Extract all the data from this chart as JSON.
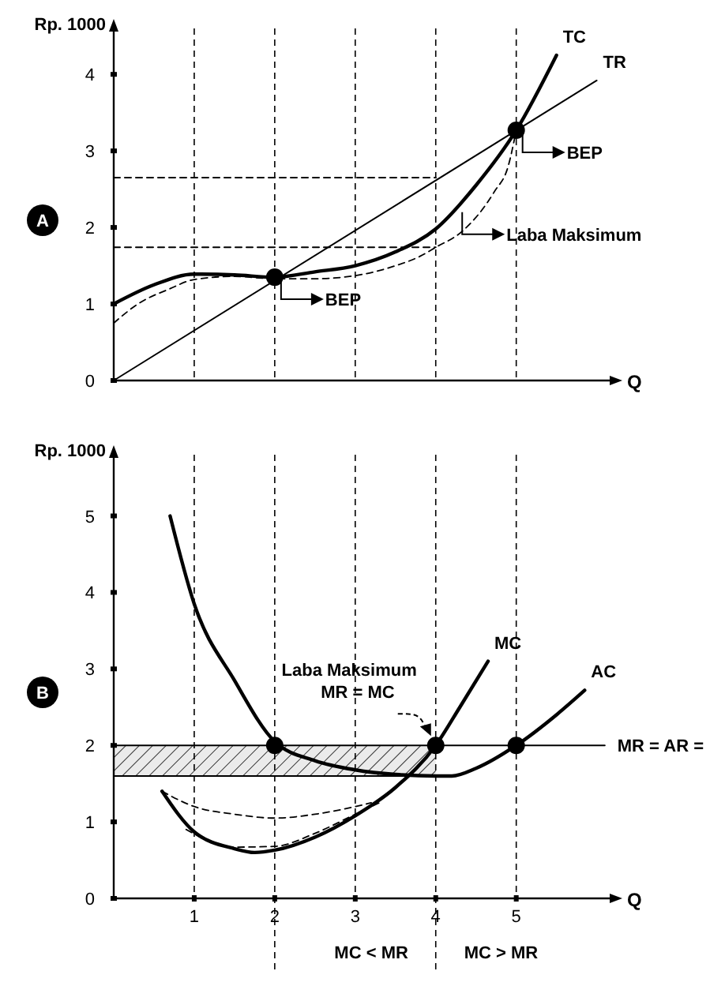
{
  "chart_data": [
    {
      "type": "line",
      "title": "A",
      "ylabel": "Rp. 1000",
      "xlabel": "Q",
      "xlim": [
        0,
        6.2
      ],
      "ylim": [
        0,
        4.6
      ],
      "yticks": [
        0,
        1,
        2,
        3,
        4
      ],
      "tick_labels": "y",
      "series": [
        {
          "name": "TC",
          "color": "#000000",
          "x": [
            0,
            0.5,
            1,
            1.5,
            2,
            2.5,
            3,
            3.5,
            4,
            4.5,
            5,
            5.5
          ],
          "values": [
            1.0,
            1.25,
            1.39,
            1.38,
            1.35,
            1.42,
            1.5,
            1.68,
            1.98,
            2.55,
            3.27,
            4.25
          ]
        },
        {
          "name": "TR",
          "color": "#000000",
          "x": [
            0,
            6
          ],
          "values": [
            0,
            3.92
          ]
        },
        {
          "color": "#000000",
          "line_style": "dashed",
          "x": [
            0,
            0.3,
            0.7,
            1,
            1.5,
            2,
            2.5,
            3,
            3.5,
            3.8,
            4,
            4.33,
            4.73,
            4.9,
            5
          ],
          "values": [
            0.75,
            1.0,
            1.2,
            1.32,
            1.36,
            1.33,
            1.33,
            1.37,
            1.5,
            1.62,
            1.74,
            1.95,
            2.47,
            2.8,
            3.27
          ]
        },
        {
          "color": "#000000",
          "line_style": "dashed",
          "x": [
            0,
            4
          ],
          "values": [
            2.65,
            2.65
          ]
        },
        {
          "color": "#000000",
          "line_style": "dashed",
          "x": [
            0,
            4
          ],
          "values": [
            1.74,
            1.74
          ]
        },
        {
          "type": "scatter",
          "marker": "circle",
          "color": "#000000",
          "x": [
            2,
            5
          ],
          "values": [
            1.35,
            3.27
          ]
        }
      ],
      "ref_lines": [
        {
          "axis": "x",
          "value": 1
        },
        {
          "axis": "x",
          "value": 2
        },
        {
          "axis": "x",
          "value": 3
        },
        {
          "axis": "x",
          "value": 4
        },
        {
          "axis": "x",
          "value": 5
        }
      ],
      "annotations": [
        {
          "text": "BEP",
          "x": 2,
          "y": 1.35
        },
        {
          "text": "BEP",
          "x": 5,
          "y": 3.27
        },
        {
          "text": "Laba Maksimum",
          "x": 4.25,
          "y": 2.2
        }
      ]
    },
    {
      "type": "line",
      "title": "B",
      "ylabel": "Rp. 1000",
      "xlabel": "Q",
      "xlim": [
        0,
        6.2
      ],
      "ylim": [
        0,
        5.8
      ],
      "xticks": [
        1,
        2,
        3,
        4,
        5
      ],
      "yticks": [
        0,
        1,
        2,
        3,
        4,
        5
      ],
      "series": [
        {
          "type": "line",
          "color": "#000000",
          "x": [
            0,
            4
          ],
          "values": [
            1.6,
            1.6
          ],
          "lower": [
            1.6,
            1.6
          ],
          "upper": [
            2,
            2
          ]
        },
        {
          "name": "AC",
          "color": "#000000",
          "x": [
            0.7,
            1,
            1.5,
            2,
            2.5,
            3,
            3.5,
            4,
            4.2,
            4.5,
            5,
            5.5,
            5.85
          ],
          "values": [
            5.0,
            3.85,
            2.85,
            2.05,
            1.8,
            1.68,
            1.62,
            1.6,
            1.6,
            1.7,
            2.0,
            2.4,
            2.72
          ]
        },
        {
          "name": "MC",
          "color": "#000000",
          "x": [
            0.6,
            1,
            1.5,
            1.75,
            2,
            2.5,
            3,
            3.5,
            4,
            4.3,
            4.65
          ],
          "values": [
            1.4,
            0.87,
            0.65,
            0.6,
            0.63,
            0.8,
            1.08,
            1.45,
            2.0,
            2.5,
            3.1
          ]
        },
        {
          "color": "#000000",
          "line_style": "dashed",
          "x": [
            0.6,
            1,
            1.5,
            2,
            2.5,
            3,
            3.2
          ],
          "values": [
            1.4,
            1.2,
            1.1,
            1.05,
            1.1,
            1.2,
            1.25
          ]
        },
        {
          "color": "#000000",
          "line_style": "dashed",
          "x": [
            0.9,
            1.5,
            2,
            2.5,
            3,
            3.3
          ],
          "values": [
            0.9,
            0.67,
            0.68,
            0.85,
            1.1,
            1.25
          ]
        },
        {
          "name": "MR = AR =",
          "color": "#000000",
          "x": [
            0,
            6.1
          ],
          "values": [
            2,
            2
          ]
        },
        {
          "type": "scatter",
          "marker": "circle",
          "color": "#000000",
          "x": [
            2,
            4,
            5
          ],
          "values": [
            2,
            2,
            2
          ]
        }
      ],
      "ref_lines": [
        {
          "axis": "x",
          "value": 1
        },
        {
          "axis": "x",
          "value": 2
        },
        {
          "axis": "x",
          "value": 3
        },
        {
          "axis": "x",
          "value": 4
        },
        {
          "axis": "x",
          "value": 5
        }
      ],
      "annotations": [
        {
          "text": "Laba Maksimum\nMR = MC",
          "x": 4,
          "y": 2
        },
        "MC < MR",
        "MC > MR"
      ]
    }
  ]
}
